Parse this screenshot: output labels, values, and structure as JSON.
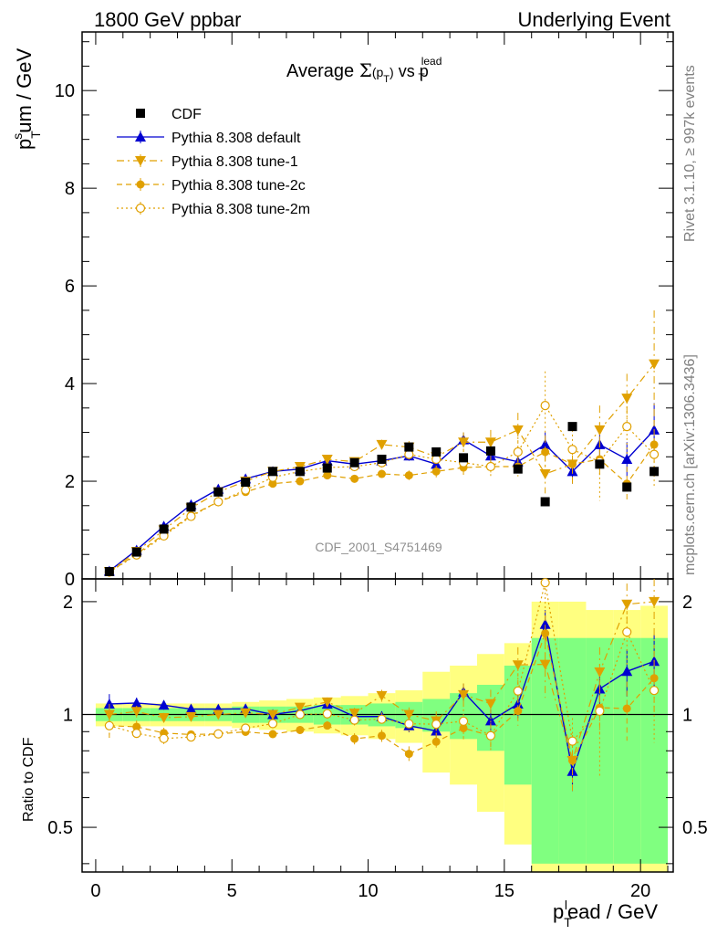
{
  "header": {
    "left": "1800 GeV ppbar",
    "right": "Underlying Event"
  },
  "side": {
    "rivet": "Rivet 3.1.10, ≥ 997k events",
    "mcplots": "mcplots.cern.ch [arXiv:1306.3436]"
  },
  "watermark": "CDF_2001_S4751469",
  "colors": {
    "data": "#000000",
    "default": "#0000d0",
    "tune": "#e0a000",
    "band_outer": "#ffff80",
    "band_inner": "#80ff80"
  },
  "chart_data": {
    "type": "line",
    "title": "Average Σ(p_T) vs p_T^lead",
    "xlabel": "p_T^lead / GeV",
    "ylabel_top": "p_T^sum / GeV",
    "ylabel_bottom": "Ratio to CDF",
    "xlim": [
      -0.5,
      21.2
    ],
    "ylim_top": [
      0,
      11.2
    ],
    "ylim_bottom": [
      0.38,
      2.3
    ],
    "bottom_log_scale": true,
    "x_ticks": [
      0,
      5,
      10,
      15,
      20
    ],
    "y_ticks_top": [
      0,
      2,
      4,
      6,
      8,
      10
    ],
    "y_ticks_bottom": [
      0.5,
      1,
      2
    ],
    "legend_position": "top-left",
    "x": [
      0.5,
      1.5,
      2.5,
      3.5,
      4.5,
      5.5,
      6.5,
      7.5,
      8.5,
      9.5,
      10.5,
      11.5,
      12.5,
      13.5,
      14.5,
      15.5,
      16.5,
      17.5,
      18.5,
      19.5,
      20.5
    ],
    "series": [
      {
        "name": "CDF",
        "style": "data",
        "values": [
          0.15,
          0.55,
          1.02,
          1.47,
          1.78,
          1.98,
          2.2,
          2.2,
          2.27,
          2.38,
          2.45,
          2.7,
          2.6,
          2.48,
          2.62,
          2.25,
          1.58,
          3.12,
          2.35,
          1.88,
          2.2
        ]
      },
      {
        "name": "Pythia 8.308 default",
        "style": "default",
        "values": [
          0.16,
          0.59,
          1.08,
          1.52,
          1.84,
          2.05,
          2.2,
          2.25,
          2.42,
          2.35,
          2.42,
          2.52,
          2.35,
          2.85,
          2.52,
          2.4,
          2.75,
          2.2,
          2.75,
          2.45,
          3.05
        ],
        "errors": [
          0.01,
          0.02,
          0.03,
          0.03,
          0.04,
          0.04,
          0.05,
          0.05,
          0.06,
          0.07,
          0.08,
          0.1,
          0.12,
          0.15,
          0.18,
          0.2,
          0.25,
          0.25,
          0.3,
          0.35,
          0.55
        ]
      },
      {
        "name": "Pythia 8.308 tune-1",
        "style": "tune",
        "marker": "triangle-down",
        "dash": "dashdot",
        "values": [
          0.15,
          0.56,
          1.0,
          1.45,
          1.78,
          2.0,
          2.2,
          2.3,
          2.45,
          2.4,
          2.75,
          2.7,
          2.5,
          2.8,
          2.8,
          3.05,
          2.15,
          2.35,
          3.05,
          3.7,
          4.4
        ],
        "errors": [
          0.01,
          0.02,
          0.03,
          0.03,
          0.04,
          0.04,
          0.05,
          0.06,
          0.07,
          0.08,
          0.1,
          0.12,
          0.15,
          0.2,
          0.25,
          0.35,
          0.4,
          0.4,
          0.5,
          0.5,
          1.1
        ]
      },
      {
        "name": "Pythia 8.308 tune-2c",
        "style": "tune",
        "marker": "circle-filled",
        "dash": "dashed",
        "values": [
          0.14,
          0.51,
          0.91,
          1.3,
          1.58,
          1.78,
          1.95,
          2.0,
          2.12,
          2.05,
          2.15,
          2.12,
          2.2,
          2.28,
          2.3,
          2.3,
          2.6,
          2.35,
          2.45,
          1.95,
          2.75
        ],
        "errors": [
          0.01,
          0.02,
          0.03,
          0.03,
          0.04,
          0.04,
          0.05,
          0.05,
          0.06,
          0.07,
          0.08,
          0.1,
          0.12,
          0.15,
          0.18,
          0.2,
          0.3,
          0.3,
          0.35,
          0.35,
          0.5
        ]
      },
      {
        "name": "Pythia 8.308 tune-2m",
        "style": "tune",
        "marker": "circle-open",
        "dash": "dotted",
        "values": [
          0.14,
          0.49,
          0.88,
          1.28,
          1.58,
          1.82,
          2.08,
          2.2,
          2.28,
          2.3,
          2.38,
          2.55,
          2.45,
          2.38,
          2.3,
          2.6,
          3.55,
          2.65,
          2.4,
          3.12,
          2.55
        ],
        "errors": [
          0.01,
          0.02,
          0.03,
          0.03,
          0.04,
          0.04,
          0.05,
          0.06,
          0.07,
          0.08,
          0.1,
          0.12,
          0.15,
          0.18,
          0.22,
          0.3,
          0.7,
          0.4,
          0.8,
          0.6,
          0.7
        ]
      }
    ],
    "ratio": {
      "band_inner_half": [
        0.04,
        0.04,
        0.04,
        0.04,
        0.04,
        0.05,
        0.05,
        0.05,
        0.06,
        0.06,
        0.07,
        0.08,
        0.1,
        0.14,
        0.2,
        0.35,
        0.6,
        0.6,
        0.6,
        0.6,
        0.6
      ],
      "band_outer_half": [
        0.07,
        0.07,
        0.07,
        0.07,
        0.07,
        0.08,
        0.09,
        0.1,
        0.11,
        0.12,
        0.14,
        0.16,
        0.3,
        0.35,
        0.45,
        0.55,
        1.0,
        1.0,
        0.9,
        0.9,
        0.95
      ]
    }
  }
}
